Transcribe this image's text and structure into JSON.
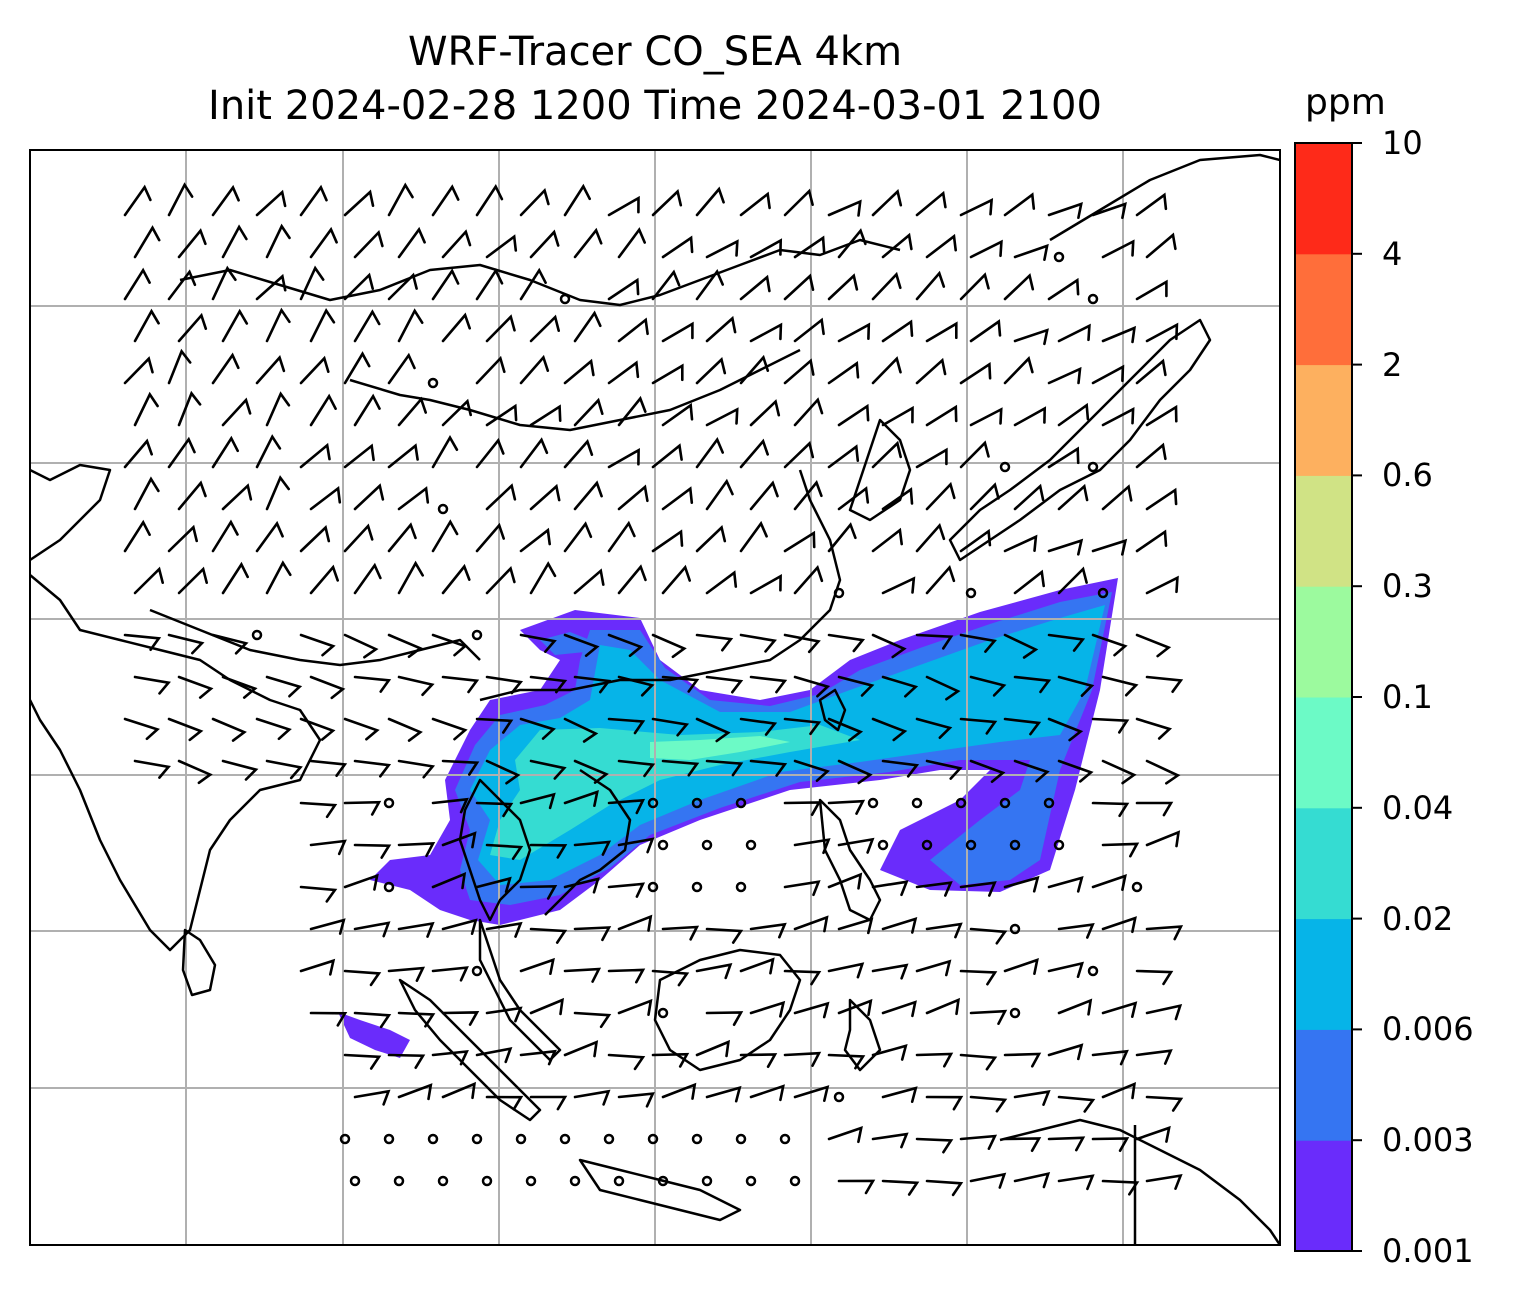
{
  "title": {
    "line1": "WRF-Tracer CO_SEA 4km",
    "line2": "Init 2024-02-28 1200 Time 2024-03-01 2100"
  },
  "colorbar": {
    "unit": "ppm",
    "ticks": [
      "0.001",
      "0.003",
      "0.006",
      "0.02",
      "0.04",
      "0.1",
      "0.3",
      "0.6",
      "2",
      "4",
      "10"
    ],
    "colors": [
      "#6a2cfb",
      "#3575f2",
      "#06b4e8",
      "#35dcd2",
      "#6cfac6",
      "#9cfa9e",
      "#d0e385",
      "#fdb05f",
      "#ff6e3a",
      "#fe2a19"
    ]
  },
  "map": {
    "grid": true,
    "plume_colors": [
      "#6a2cfb",
      "#3575f2",
      "#06b4e8",
      "#35dcd2",
      "#6cfac6"
    ],
    "coast_color": "#000000",
    "grid_color": "#b0b0b0"
  }
}
